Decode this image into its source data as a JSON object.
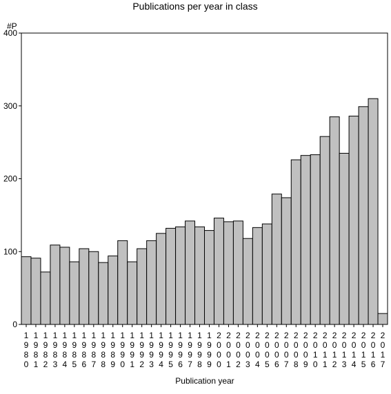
{
  "chart_data": {
    "type": "bar",
    "title": "Publications per year in class",
    "ylabel": "#P",
    "xlabel": "Publication year",
    "ylim": [
      0,
      400
    ],
    "yticks": [
      0,
      100,
      200,
      300,
      400
    ],
    "grid": false,
    "colors": {
      "bar_fill": "#c0c0c0",
      "bar_stroke": "#000000",
      "axis": "#000000",
      "background": "#ffffff"
    },
    "categories": [
      "1980",
      "1981",
      "1982",
      "1983",
      "1984",
      "1985",
      "1986",
      "1987",
      "1988",
      "1989",
      "1990",
      "1991",
      "1992",
      "1993",
      "1994",
      "1995",
      "1996",
      "1997",
      "1998",
      "1999",
      "2000",
      "2001",
      "2002",
      "2003",
      "2004",
      "2005",
      "2006",
      "2007",
      "2008",
      "2009",
      "2010",
      "2011",
      "2012",
      "2013",
      "2014",
      "2015",
      "2016",
      "2017"
    ],
    "values": [
      93,
      91,
      72,
      109,
      106,
      86,
      104,
      100,
      85,
      94,
      115,
      86,
      104,
      115,
      125,
      132,
      134,
      142,
      134,
      129,
      146,
      141,
      142,
      118,
      133,
      138,
      179,
      174,
      226,
      232,
      233,
      258,
      285,
      235,
      286,
      299,
      310,
      15
    ]
  }
}
